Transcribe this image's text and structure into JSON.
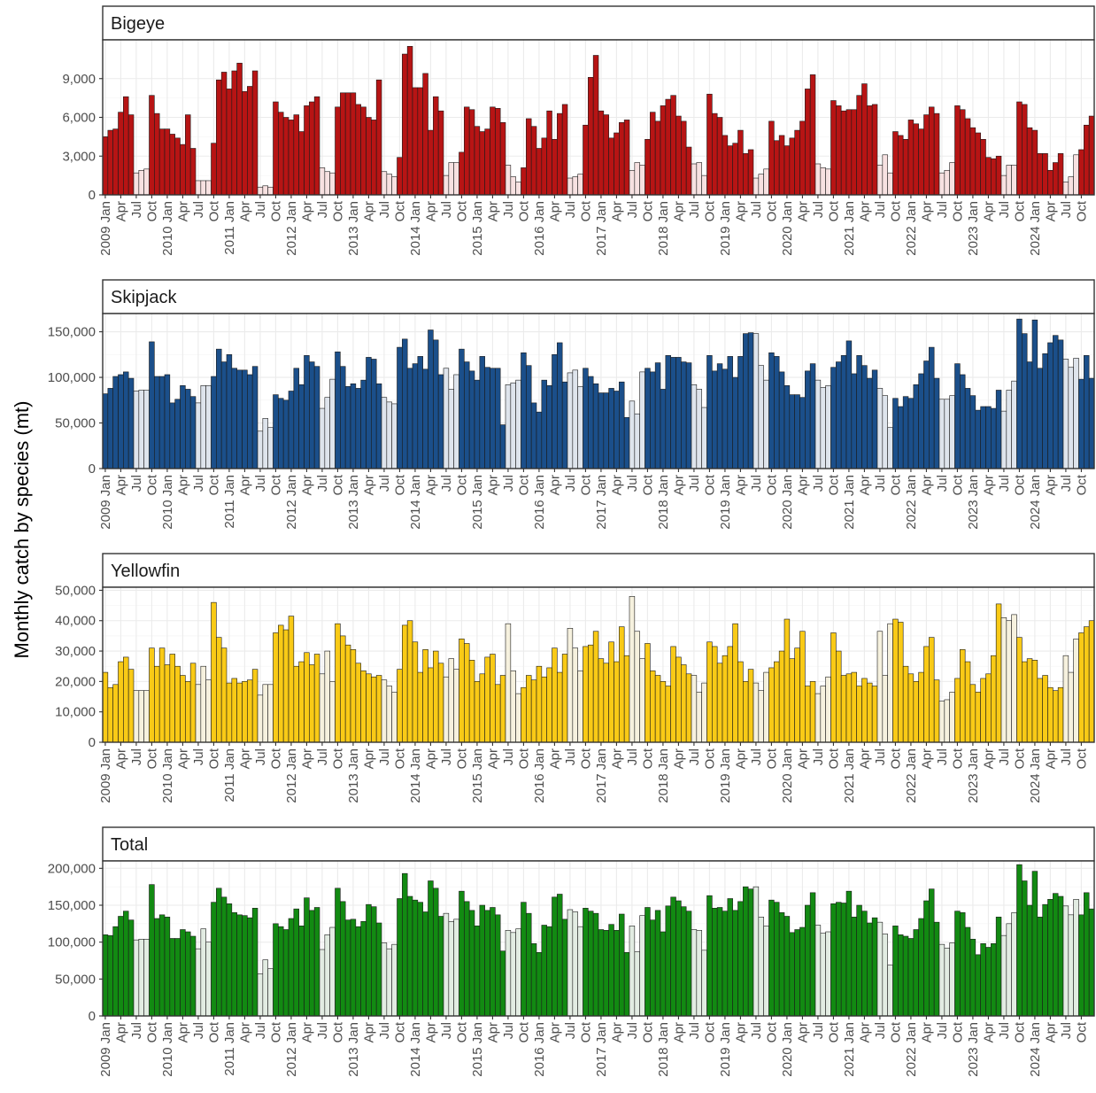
{
  "chart_data": {
    "type": "bar",
    "ylabel": "Monthly catch by species (mt)",
    "x": {
      "start_year": 2009,
      "end_year": 2024,
      "month_labels": [
        "Jan",
        "Apr",
        "Jul",
        "Oct"
      ],
      "year_labels": [
        "2009",
        "2010",
        "2011",
        "2012",
        "2013",
        "2014",
        "2015",
        "2016",
        "2017",
        "2018",
        "2019",
        "2020",
        "2021",
        "2022",
        "2023",
        "2024"
      ]
    },
    "light_months": [
      7,
      8,
      9
    ],
    "panels": [
      {
        "name": "Bigeye",
        "fill": "#B71414",
        "light_fill": "#F7E1E1",
        "ylim": [
          0,
          12000
        ],
        "yticks": [
          0,
          3000,
          6000,
          9000
        ],
        "ytick_labels": [
          "0",
          "3,000",
          "6,000",
          "9,000"
        ],
        "values": [
          [
            4500,
            5000,
            5100,
            6400,
            7600,
            6200,
            1700,
            1900,
            2000,
            7700,
            6300,
            5100
          ],
          [
            5100,
            4700,
            4400,
            3900,
            6200,
            3600,
            1100,
            1100,
            1100,
            4000,
            8900,
            9500
          ],
          [
            8200,
            9600,
            10200,
            8000,
            8400,
            9600,
            600,
            700,
            600,
            7200,
            6400,
            6000
          ],
          [
            5800,
            6200,
            4900,
            6900,
            7200,
            7600,
            2100,
            1800,
            1700,
            6800,
            7900,
            7900
          ],
          [
            7900,
            7000,
            6800,
            6000,
            5800,
            8900,
            1800,
            1600,
            1400,
            2900,
            10900,
            11500
          ],
          [
            8300,
            8300,
            9400,
            5000,
            7600,
            6500,
            1500,
            2500,
            2500,
            3300,
            6800,
            6600
          ],
          [
            5300,
            4900,
            5100,
            6800,
            6700,
            5600,
            2300,
            1400,
            1000,
            2100,
            5900,
            5300
          ],
          [
            3600,
            4400,
            6500,
            4300,
            6300,
            7000,
            1300,
            1400,
            1600,
            5400,
            9100,
            10800
          ],
          [
            6500,
            6200,
            4400,
            4800,
            5600,
            5800,
            1900,
            2500,
            2300,
            4300,
            6400,
            5700
          ],
          [
            6900,
            7400,
            7700,
            6100,
            5700,
            3700,
            2400,
            2500,
            1500,
            7800,
            6300,
            6000
          ],
          [
            4600,
            3800,
            4000,
            5000,
            3200,
            3500,
            1300,
            1600,
            2000,
            5700,
            4200,
            4600
          ],
          [
            3800,
            4400,
            5000,
            5700,
            8200,
            9300,
            2400,
            2100,
            2000,
            7300,
            6900,
            6500
          ],
          [
            6600,
            6600,
            7700,
            8600,
            6900,
            7000,
            2300,
            3100,
            1700,
            4900,
            4600,
            4300
          ],
          [
            5800,
            5500,
            5100,
            6200,
            6800,
            6300,
            1700,
            1900,
            2500,
            6900,
            6600,
            5900
          ],
          [
            5200,
            4800,
            4300,
            2900,
            2800,
            3000,
            1500,
            2300,
            2300,
            7200,
            7000,
            5200
          ],
          [
            5000,
            3200,
            3200,
            1900,
            2500,
            3200,
            1000,
            1400,
            3100,
            3500,
            5400,
            6100
          ]
        ]
      },
      {
        "name": "Skipjack",
        "fill": "#1B4F8A",
        "light_fill": "#DEE4EC",
        "ylim": [
          0,
          170000
        ],
        "yticks": [
          0,
          50000,
          100000,
          150000
        ],
        "ytick_labels": [
          "0",
          "50,000",
          "100,000",
          "150,000"
        ],
        "values": [
          [
            82000,
            88000,
            101000,
            103000,
            106000,
            99000,
            85000,
            86000,
            86000,
            139000,
            101000,
            101000
          ],
          [
            103000,
            72000,
            76000,
            91000,
            87000,
            79000,
            72000,
            91000,
            91000,
            101000,
            131000,
            117000
          ],
          [
            125000,
            110000,
            108000,
            108000,
            103000,
            112000,
            41000,
            55000,
            45000,
            81000,
            77000,
            75000
          ],
          [
            85000,
            110000,
            92000,
            124000,
            117000,
            112000,
            66000,
            78000,
            98000,
            128000,
            112000,
            90000
          ],
          [
            93000,
            88000,
            97000,
            122000,
            120000,
            93000,
            78000,
            73000,
            71000,
            133000,
            142000,
            110000
          ],
          [
            115000,
            123000,
            109000,
            152000,
            141000,
            103000,
            110000,
            87000,
            103000,
            131000,
            117000,
            107000
          ],
          [
            97000,
            123000,
            111000,
            110000,
            110000,
            48000,
            92000,
            94000,
            97000,
            127000,
            113000,
            72000
          ],
          [
            62000,
            97000,
            91000,
            125000,
            138000,
            95000,
            105000,
            108000,
            90000,
            110000,
            101000,
            93000
          ],
          [
            83000,
            83000,
            88000,
            85000,
            95000,
            56000,
            74000,
            60000,
            106000,
            110000,
            106000,
            116000
          ],
          [
            87000,
            124000,
            122000,
            122000,
            117000,
            116000,
            92000,
            87000,
            67000,
            124000,
            107000,
            115000
          ],
          [
            109000,
            123000,
            100000,
            123000,
            148000,
            149000,
            148000,
            113000,
            97000,
            127000,
            123000,
            106000
          ],
          [
            91000,
            81000,
            81000,
            78000,
            107000,
            115000,
            97000,
            89000,
            91000,
            111000,
            117000,
            124000
          ],
          [
            140000,
            104000,
            124000,
            113000,
            99000,
            108000,
            88000,
            80000,
            45000,
            77000,
            68000,
            79000
          ],
          [
            77000,
            92000,
            104000,
            118000,
            133000,
            99000,
            76000,
            76000,
            80000,
            115000,
            103000,
            88000
          ],
          [
            80000,
            64000,
            68000,
            68000,
            66000,
            86000,
            63000,
            86000,
            96000,
            164000,
            148000,
            117000
          ],
          [
            163000,
            110000,
            126000,
            138000,
            146000,
            141000,
            120000,
            111000,
            121000,
            98000,
            124000,
            99000
          ]
        ]
      },
      {
        "name": "Yellowfin",
        "fill": "#F9CA16",
        "light_fill": "#F6F1DE",
        "ylim": [
          0,
          51000
        ],
        "yticks": [
          0,
          10000,
          20000,
          30000,
          40000,
          50000
        ],
        "ytick_labels": [
          "0",
          "10,000",
          "20,000",
          "30,000",
          "40,000",
          "50,000"
        ],
        "values": [
          [
            23000,
            18000,
            19000,
            26500,
            28000,
            24000,
            17000,
            17000,
            17000,
            31000,
            25000,
            31000
          ],
          [
            25500,
            29000,
            25000,
            22000,
            20000,
            26000,
            19000,
            25000,
            20500,
            46000,
            34500,
            31000
          ],
          [
            19500,
            21000,
            19500,
            20000,
            20500,
            24000,
            15500,
            19000,
            19000,
            36000,
            38500,
            37000
          ],
          [
            41500,
            25000,
            26500,
            29500,
            25500,
            29000,
            22500,
            30000,
            20000,
            39000,
            35000,
            32000
          ],
          [
            30500,
            26000,
            23500,
            22500,
            21500,
            22000,
            20500,
            18500,
            16500,
            24000,
            38500,
            40000
          ],
          [
            33000,
            23000,
            30500,
            24500,
            30000,
            26000,
            21500,
            27500,
            24000,
            34000,
            32500,
            27000
          ],
          [
            20000,
            22500,
            28000,
            29000,
            19000,
            22000,
            39000,
            23500,
            16000,
            18000,
            22000,
            20500
          ],
          [
            25000,
            21500,
            24500,
            31000,
            23000,
            29000,
            37500,
            31000,
            23500,
            31500,
            32000,
            36500
          ],
          [
            27500,
            26000,
            33000,
            26500,
            38000,
            28500,
            48000,
            36500,
            27500,
            32500,
            23500,
            22000
          ],
          [
            20000,
            18500,
            31500,
            28000,
            25500,
            22500,
            22000,
            16500,
            19500,
            33000,
            31500,
            26000
          ],
          [
            28500,
            31500,
            39000,
            26500,
            20000,
            24000,
            19500,
            17000,
            23000,
            24500,
            26500,
            30000
          ],
          [
            40500,
            27500,
            31000,
            36500,
            18500,
            20000,
            16000,
            18500,
            21500,
            36000,
            30000,
            22000
          ],
          [
            22500,
            23000,
            18500,
            21000,
            19500,
            18500,
            36500,
            22000,
            39000,
            40500,
            39500,
            25000
          ],
          [
            22500,
            20000,
            23000,
            31500,
            34500,
            20500,
            13500,
            14000,
            16500,
            21000,
            30500,
            26500
          ],
          [
            19000,
            16500,
            21000,
            22500,
            28500,
            45500,
            41000,
            40000,
            42000,
            34500,
            26500,
            27500
          ],
          [
            27000,
            21000,
            22000,
            18000,
            17000,
            18000,
            28500,
            23000,
            34000,
            36000,
            38000,
            40000
          ]
        ]
      },
      {
        "name": "Total",
        "fill": "#128A12",
        "light_fill": "#E2ECE2",
        "ylim": [
          0,
          210000
        ],
        "yticks": [
          0,
          50000,
          100000,
          150000,
          200000
        ],
        "ytick_labels": [
          "0",
          "50,000",
          "100,000",
          "150,000",
          "200,000"
        ],
        "values": [
          [
            110000,
            109000,
            121000,
            135000,
            142000,
            130000,
            103000,
            104000,
            104000,
            178000,
            132000,
            137000
          ],
          [
            134000,
            105000,
            105000,
            117000,
            114000,
            108000,
            91000,
            118000,
            100000,
            154000,
            173000,
            161000
          ],
          [
            152000,
            140000,
            137000,
            136000,
            133000,
            146000,
            57000,
            76000,
            64000,
            125000,
            121000,
            117000
          ],
          [
            132000,
            145000,
            122000,
            160000,
            143000,
            147000,
            90000,
            110000,
            120000,
            173000,
            155000,
            130000
          ],
          [
            131000,
            121000,
            128000,
            151000,
            148000,
            126000,
            99000,
            91000,
            97000,
            159000,
            193000,
            162000
          ],
          [
            157000,
            154000,
            141000,
            183000,
            173000,
            135000,
            139000,
            128000,
            131000,
            169000,
            155000,
            143000
          ],
          [
            122000,
            150000,
            143000,
            147000,
            137000,
            88000,
            116000,
            113000,
            118000,
            154000,
            139000,
            98000
          ],
          [
            86000,
            123000,
            121000,
            161000,
            165000,
            131000,
            144000,
            141000,
            121000,
            146000,
            142000,
            139000
          ],
          [
            117000,
            116000,
            124000,
            116000,
            138000,
            86000,
            122000,
            87000,
            136000,
            147000,
            130000,
            143000
          ],
          [
            114000,
            149000,
            161000,
            156000,
            148000,
            142000,
            117000,
            116000,
            89000,
            163000,
            146000,
            147000
          ],
          [
            142000,
            159000,
            143000,
            155000,
            175000,
            172000,
            175000,
            134000,
            122000,
            157000,
            154000,
            140000
          ],
          [
            135000,
            113000,
            117000,
            120000,
            150000,
            167000,
            123000,
            112000,
            114000,
            152000,
            154000,
            153000
          ],
          [
            169000,
            134000,
            150000,
            142000,
            126000,
            133000,
            127000,
            111000,
            69000,
            122000,
            110000,
            108000
          ],
          [
            105000,
            117000,
            132000,
            156000,
            172000,
            127000,
            97000,
            92000,
            99000,
            142000,
            140000,
            120000
          ],
          [
            104000,
            83000,
            98000,
            93000,
            98000,
            134000,
            109000,
            125000,
            140000,
            205000,
            183000,
            150000
          ],
          [
            196000,
            134000,
            151000,
            158000,
            166000,
            162000,
            149000,
            137000,
            158000,
            137000,
            167000,
            145000
          ]
        ]
      }
    ]
  }
}
